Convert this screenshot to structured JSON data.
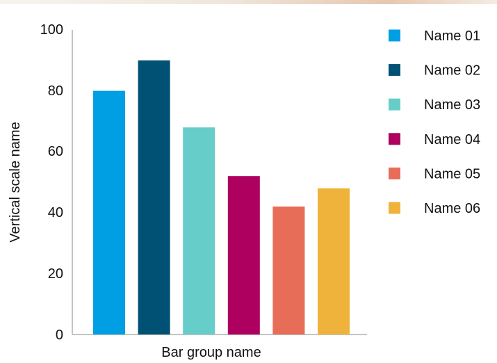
{
  "chart_data": {
    "type": "bar",
    "categories": [
      "Name 01",
      "Name 02",
      "Name 03",
      "Name 04",
      "Name 05",
      "Name 06"
    ],
    "values": [
      80,
      90,
      68,
      52,
      42,
      48
    ],
    "colors": [
      "#009fe3",
      "#005173",
      "#66cdc8",
      "#ad005f",
      "#e86d58",
      "#efb33b"
    ],
    "xlabel": "Bar group name",
    "ylabel": "Vertical scale name",
    "ylim": [
      0,
      100
    ],
    "yticks": [
      "0",
      "20",
      "40",
      "60",
      "80",
      "100"
    ],
    "legend": {
      "placement": "right",
      "entries": [
        "Name 01",
        "Name 02",
        "Name 03",
        "Name 04",
        "Name 05",
        "Name 06"
      ]
    },
    "grid": false
  }
}
